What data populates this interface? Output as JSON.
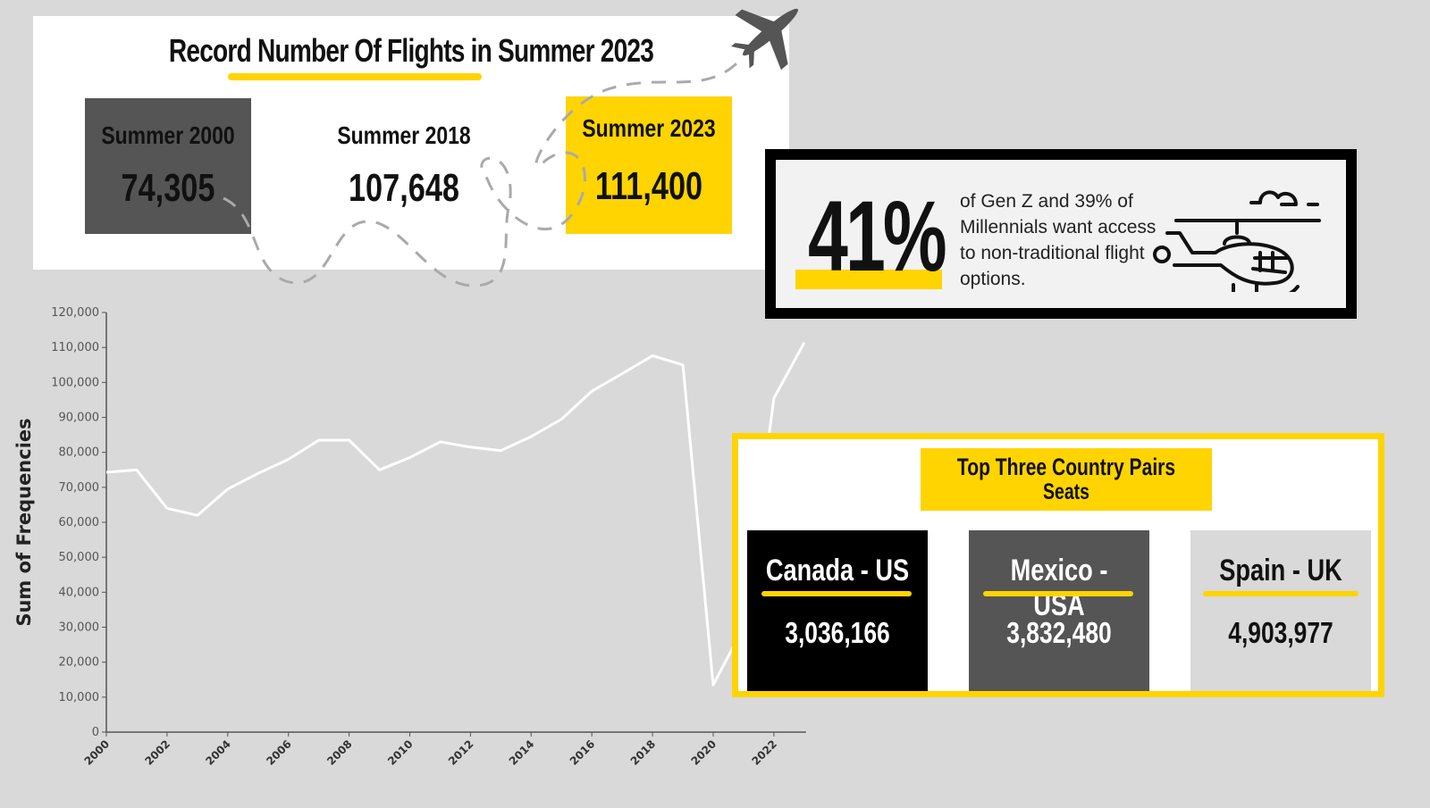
{
  "header": {
    "title": "Record Number Of Flights in Summer 2023",
    "stats": [
      {
        "label": "Summer 2000",
        "value": "74,305"
      },
      {
        "label": "Summer 2018",
        "value": "107,648"
      },
      {
        "label": "Summer 2023",
        "value": "111,400"
      }
    ],
    "icon": "airplane-icon"
  },
  "genz": {
    "percent": "41%",
    "text": "of Gen Z and 39% of Millennials want access to non-traditional flight options.",
    "icon": "helicopter-icon"
  },
  "pairs": {
    "title": "Top Three Country Pairs",
    "subtitle": "Seats",
    "items": [
      {
        "name": "Canada - US",
        "value": "3,036,166"
      },
      {
        "name": "Mexico - USA",
        "value": "3,832,480"
      },
      {
        "name": "Spain - UK",
        "value": "4,903,977"
      }
    ]
  },
  "colors": {
    "accent": "#ffd400",
    "dark_gray": "#555555",
    "background": "#d9d9d9",
    "line": "#ffffff"
  },
  "chart_data": {
    "type": "line",
    "title": "",
    "xlabel": "",
    "ylabel": "Sum of Frequencies",
    "x": [
      2000,
      2001,
      2002,
      2003,
      2004,
      2005,
      2006,
      2007,
      2008,
      2009,
      2010,
      2011,
      2012,
      2013,
      2014,
      2015,
      2016,
      2017,
      2018,
      2019,
      2020,
      2021,
      2022,
      2023
    ],
    "series": [
      {
        "name": "Sum of Frequencies",
        "values": [
          74305,
          75000,
          64000,
          62000,
          69500,
          74000,
          78000,
          83500,
          83500,
          75000,
          78500,
          83000,
          81500,
          80500,
          84500,
          89500,
          97500,
          102500,
          107648,
          105000,
          13500,
          30000,
          95500,
          111400
        ]
      }
    ],
    "xticks": [
      "2000",
      "2002",
      "2004",
      "2006",
      "2008",
      "2010",
      "2012",
      "2014",
      "2016",
      "2018",
      "2020",
      "2022"
    ],
    "yticks": [
      "0",
      "10,000",
      "20,000",
      "30,000",
      "40,000",
      "50,000",
      "60,000",
      "70,000",
      "80,000",
      "90,000",
      "100,000",
      "110,000",
      "120,000"
    ],
    "ylim": [
      0,
      120000
    ],
    "xlim": [
      2000,
      2023
    ],
    "grid": false,
    "legend": "none"
  }
}
